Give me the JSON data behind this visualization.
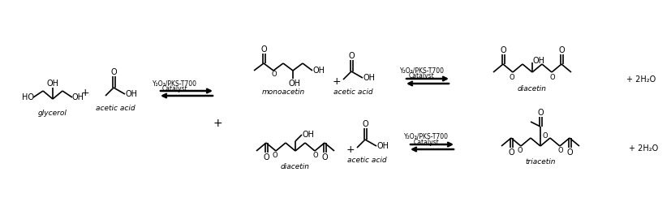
{
  "bg_color": "#ffffff",
  "text_color": "#000000",
  "line_color": "#000000",
  "figsize": [
    8.27,
    2.44
  ],
  "dpi": 100,
  "catalyst_text": "Y₂O₃/PKS-T700\nCatalyst",
  "glycerol_label": "glycerol",
  "acetic_acid_label": "acetic acid",
  "monoacetin_label": "monoacetin",
  "diacetin_label": "diacetin",
  "triacetin_label": "triacetin",
  "water_text": "+ 2H₂O"
}
